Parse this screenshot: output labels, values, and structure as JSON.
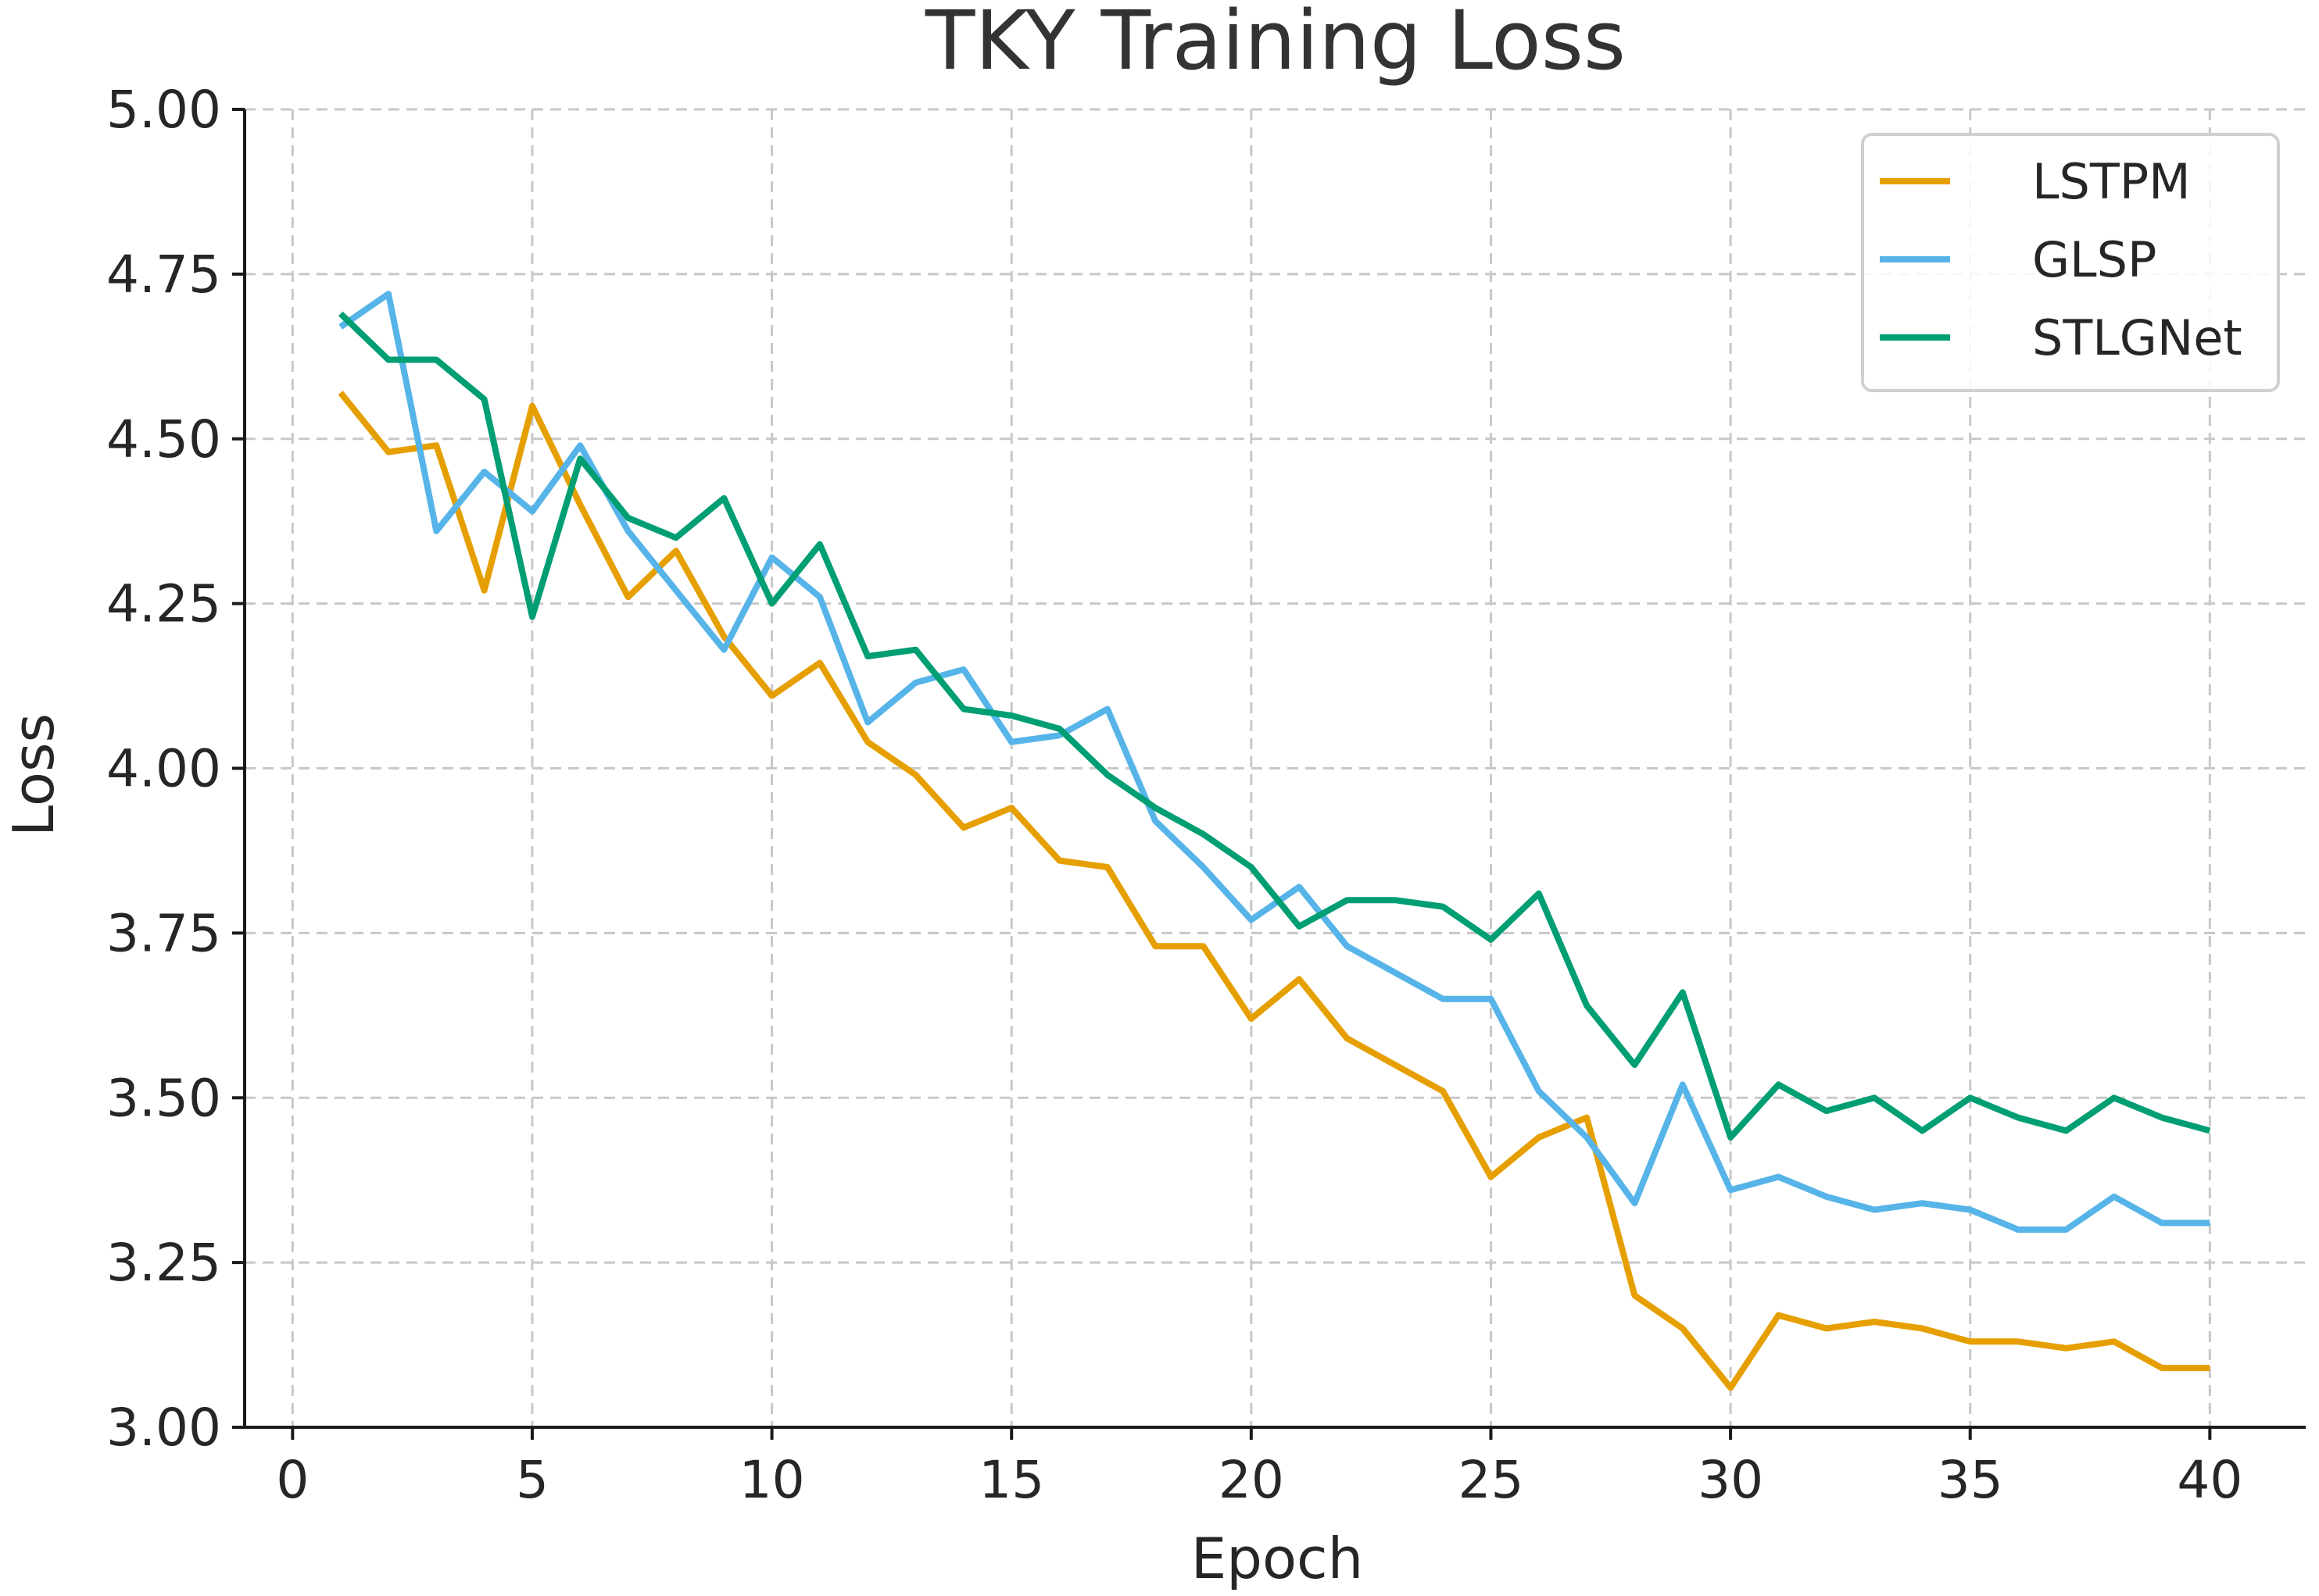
{
  "chart_data": {
    "type": "line",
    "title": "TKY Training Loss",
    "xlabel": "Epoch",
    "ylabel": "Loss",
    "xlim": [
      -1,
      42
    ],
    "ylim": [
      3.0,
      5.0
    ],
    "xticks": [
      0,
      5,
      10,
      15,
      20,
      25,
      30,
      35,
      40
    ],
    "xtick_labels": [
      "0",
      "5",
      "10",
      "15",
      "20",
      "25",
      "30",
      "35",
      "40"
    ],
    "yticks": [
      3.0,
      3.25,
      3.5,
      3.75,
      4.0,
      4.25,
      4.5,
      4.75,
      5.0
    ],
    "ytick_labels": [
      "3.00",
      "3.25",
      "3.50",
      "3.75",
      "4.00",
      "4.25",
      "4.50",
      "4.75",
      "5.00"
    ],
    "grid": true,
    "legend_position": "top-right",
    "x": [
      1,
      2,
      3,
      4,
      5,
      6,
      7,
      8,
      9,
      10,
      11,
      12,
      13,
      14,
      15,
      16,
      17,
      18,
      19,
      20,
      21,
      22,
      23,
      24,
      25,
      26,
      27,
      28,
      29,
      30,
      31,
      32,
      33,
      34,
      35,
      36,
      37,
      38,
      39,
      40
    ],
    "series": [
      {
        "name": "LSTPM",
        "color": "#E69F00",
        "values": [
          4.57,
          4.48,
          4.49,
          4.27,
          4.55,
          4.4,
          4.26,
          4.33,
          4.2,
          4.11,
          4.16,
          4.04,
          3.99,
          3.91,
          3.94,
          3.86,
          3.85,
          3.73,
          3.73,
          3.62,
          3.68,
          3.59,
          3.55,
          3.51,
          3.38,
          3.44,
          3.47,
          3.2,
          3.15,
          3.06,
          3.17,
          3.15,
          3.16,
          3.15,
          3.13,
          3.13,
          3.12,
          3.13,
          3.09,
          3.09
        ]
      },
      {
        "name": "GLSP",
        "color": "#56B4E9",
        "values": [
          4.67,
          4.72,
          4.36,
          4.45,
          4.39,
          4.49,
          4.36,
          4.27,
          4.18,
          4.32,
          4.26,
          4.07,
          4.13,
          4.15,
          4.04,
          4.05,
          4.09,
          3.92,
          3.85,
          3.77,
          3.82,
          3.73,
          3.69,
          3.65,
          3.65,
          3.51,
          3.44,
          3.34,
          3.52,
          3.36,
          3.38,
          3.35,
          3.33,
          3.34,
          3.33,
          3.3,
          3.3,
          3.35,
          3.31,
          3.31
        ]
      },
      {
        "name": "STLGNet",
        "color": "#009E73",
        "values": [
          4.69,
          4.62,
          4.62,
          4.56,
          4.23,
          4.47,
          4.38,
          4.35,
          4.41,
          4.25,
          4.34,
          4.17,
          4.18,
          4.09,
          4.08,
          4.06,
          3.99,
          3.94,
          3.9,
          3.85,
          3.76,
          3.8,
          3.8,
          3.79,
          3.74,
          3.81,
          3.64,
          3.55,
          3.66,
          3.44,
          3.52,
          3.48,
          3.5,
          3.45,
          3.5,
          3.47,
          3.45,
          3.5,
          3.47,
          3.45
        ]
      }
    ]
  }
}
